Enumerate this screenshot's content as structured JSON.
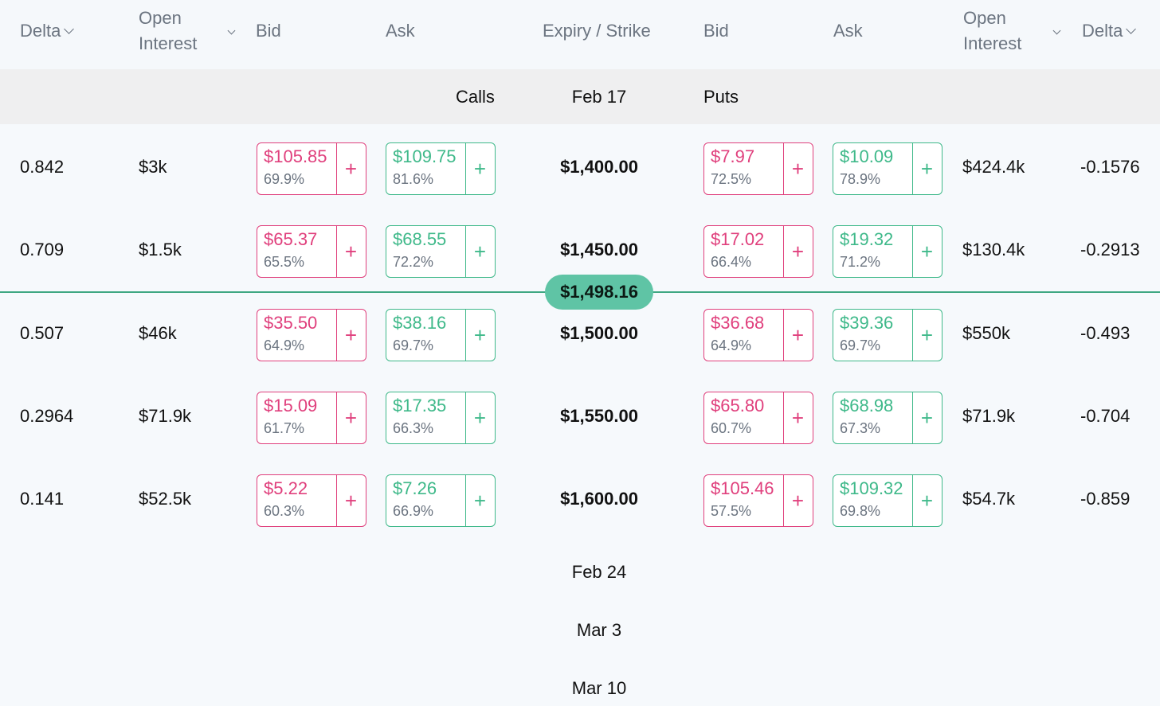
{
  "header": {
    "calls_delta": "Delta",
    "calls_oi_1": "Open",
    "calls_oi_2": "Interest",
    "calls_bid": "Bid",
    "calls_ask": "Ask",
    "expiry_strike": "Expiry / Strike",
    "puts_bid": "Bid",
    "puts_ask": "Ask",
    "puts_oi_1": "Open",
    "puts_oi_2": "Interest",
    "puts_delta": "Delta"
  },
  "group": {
    "calls_label": "Calls",
    "expiry_label": "Feb 17",
    "puts_label": "Puts"
  },
  "spot_price": "$1,498.16",
  "rows": [
    {
      "call_delta": "0.842",
      "call_oi": "$3k",
      "call_bid": {
        "price": "$105.85",
        "pct": "69.9%"
      },
      "call_ask": {
        "price": "$109.75",
        "pct": "81.6%"
      },
      "strike": "$1,400.00",
      "put_bid": {
        "price": "$7.97",
        "pct": "72.5%"
      },
      "put_ask": {
        "price": "$10.09",
        "pct": "78.9%"
      },
      "put_oi": "$424.4k",
      "put_delta": "-0.1576"
    },
    {
      "call_delta": "0.709",
      "call_oi": "$1.5k",
      "call_bid": {
        "price": "$65.37",
        "pct": "65.5%"
      },
      "call_ask": {
        "price": "$68.55",
        "pct": "72.2%"
      },
      "strike": "$1,450.00",
      "put_bid": {
        "price": "$17.02",
        "pct": "66.4%"
      },
      "put_ask": {
        "price": "$19.32",
        "pct": "71.2%"
      },
      "put_oi": "$130.4k",
      "put_delta": "-0.2913"
    },
    {
      "call_delta": "0.507",
      "call_oi": "$46k",
      "call_bid": {
        "price": "$35.50",
        "pct": "64.9%"
      },
      "call_ask": {
        "price": "$38.16",
        "pct": "69.7%"
      },
      "strike": "$1,500.00",
      "put_bid": {
        "price": "$36.68",
        "pct": "64.9%"
      },
      "put_ask": {
        "price": "$39.36",
        "pct": "69.7%"
      },
      "put_oi": "$550k",
      "put_delta": "-0.493"
    },
    {
      "call_delta": "0.2964",
      "call_oi": "$71.9k",
      "call_bid": {
        "price": "$15.09",
        "pct": "61.7%"
      },
      "call_ask": {
        "price": "$17.35",
        "pct": "66.3%"
      },
      "strike": "$1,550.00",
      "put_bid": {
        "price": "$65.80",
        "pct": "60.7%"
      },
      "put_ask": {
        "price": "$68.98",
        "pct": "67.3%"
      },
      "put_oi": "$71.9k",
      "put_delta": "-0.704"
    },
    {
      "call_delta": "0.141",
      "call_oi": "$52.5k",
      "call_bid": {
        "price": "$5.22",
        "pct": "60.3%"
      },
      "call_ask": {
        "price": "$7.26",
        "pct": "66.9%"
      },
      "strike": "$1,600.00",
      "put_bid": {
        "price": "$105.46",
        "pct": "57.5%"
      },
      "put_ask": {
        "price": "$109.32",
        "pct": "69.8%"
      },
      "put_oi": "$54.7k",
      "put_delta": "-0.859"
    }
  ],
  "add_symbol": "+",
  "expiries": [
    "Feb 24",
    "Mar 3",
    "Mar 10"
  ],
  "colors": {
    "bid": "#e0407d",
    "ask": "#3fb98a",
    "spot": "#5fc4a5"
  }
}
